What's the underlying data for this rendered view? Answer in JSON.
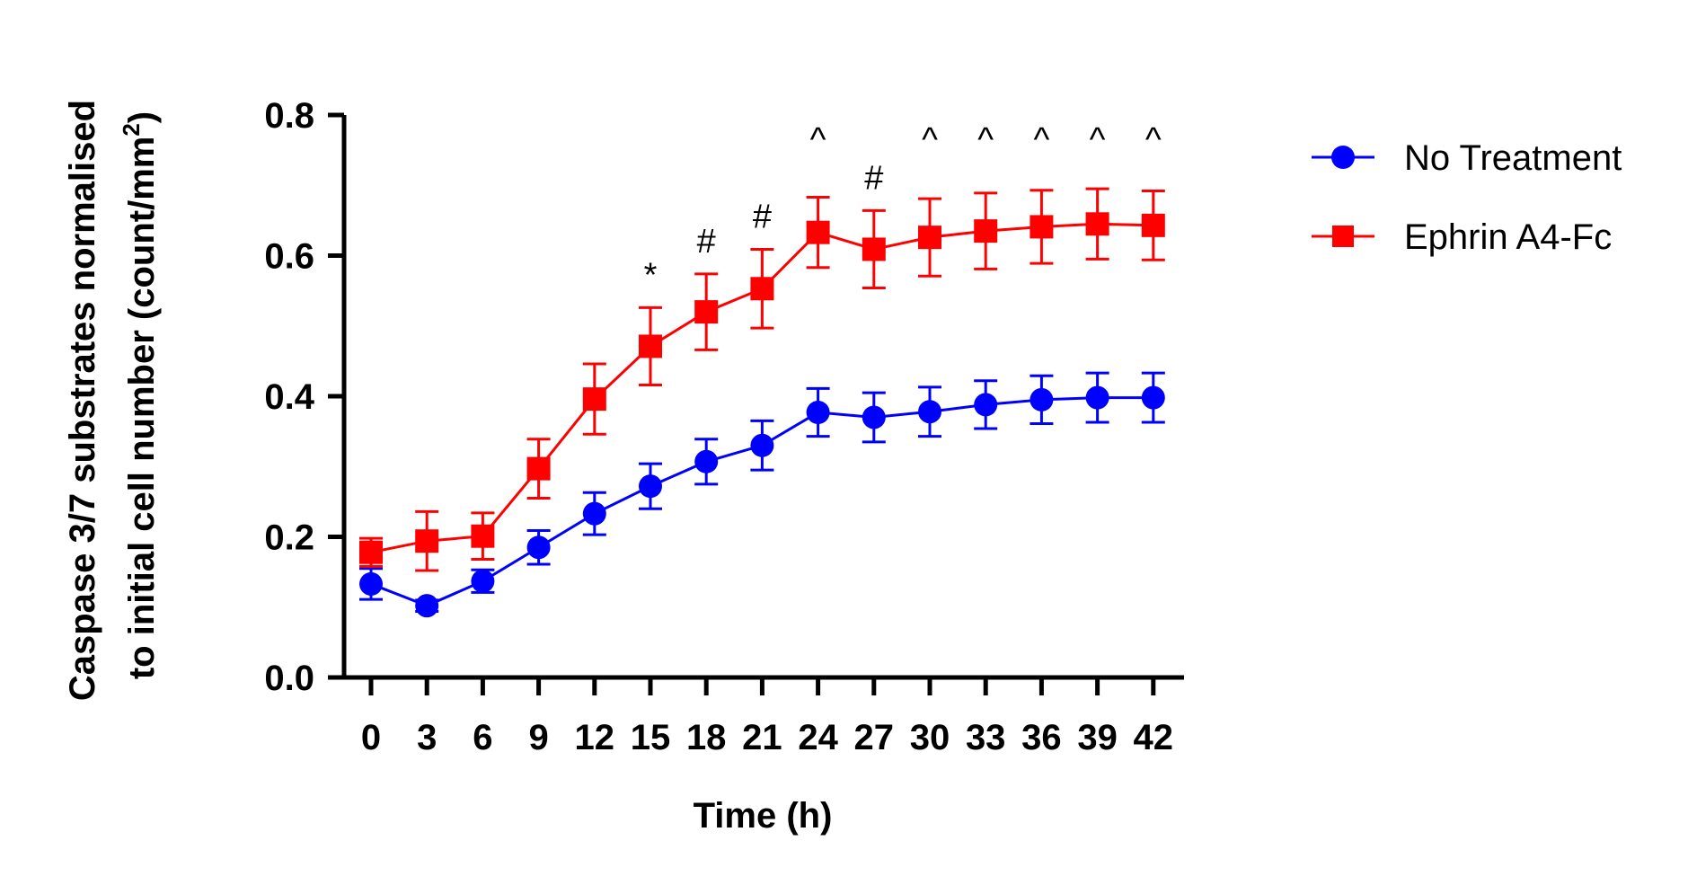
{
  "chart_data": {
    "type": "line",
    "title": "",
    "xlabel": "Time (h)",
    "ylabel_line1": "Caspase 3/7 substrates normalised",
    "ylabel_line2": "to initial cell number (count/mm",
    "ylabel_superscript": "2",
    "ylabel_close": ")",
    "x": [
      0,
      3,
      6,
      9,
      12,
      15,
      18,
      21,
      24,
      27,
      30,
      33,
      36,
      39,
      42
    ],
    "x_tick_labels": [
      "0",
      "3",
      "6",
      "9",
      "12",
      "15",
      "18",
      "21",
      "24",
      "27",
      "30",
      "33",
      "36",
      "39",
      "42"
    ],
    "ylim": [
      0,
      0.8
    ],
    "y_ticks": [
      0.0,
      0.2,
      0.4,
      0.6,
      0.8
    ],
    "y_tick_labels": [
      "0.0",
      "0.2",
      "0.4",
      "0.6",
      "0.8"
    ],
    "grid": false,
    "legend_position": "top-right outside plot",
    "series": [
      {
        "name": "No Treatment",
        "color": "#0000ff",
        "marker": "circle",
        "values": [
          0.133,
          0.102,
          0.137,
          0.185,
          0.233,
          0.272,
          0.307,
          0.33,
          0.377,
          0.37,
          0.378,
          0.388,
          0.395,
          0.398,
          0.398
        ],
        "errors": [
          0.022,
          0.008,
          0.016,
          0.024,
          0.03,
          0.032,
          0.032,
          0.035,
          0.034,
          0.035,
          0.035,
          0.034,
          0.034,
          0.035,
          0.035
        ]
      },
      {
        "name": "Ephrin A4-Fc",
        "color": "#ff0000",
        "marker": "square",
        "values": [
          0.178,
          0.194,
          0.201,
          0.297,
          0.396,
          0.471,
          0.52,
          0.553,
          0.633,
          0.609,
          0.626,
          0.635,
          0.641,
          0.645,
          0.643
        ],
        "errors": [
          0.02,
          0.042,
          0.033,
          0.042,
          0.05,
          0.055,
          0.054,
          0.056,
          0.05,
          0.055,
          0.055,
          0.054,
          0.052,
          0.05,
          0.049
        ]
      }
    ],
    "annotations": [
      {
        "x": 15,
        "text": "*"
      },
      {
        "x": 18,
        "text": "#"
      },
      {
        "x": 21,
        "text": "#"
      },
      {
        "x": 24,
        "text": "^"
      },
      {
        "x": 27,
        "text": "#"
      },
      {
        "x": 30,
        "text": "^"
      },
      {
        "x": 33,
        "text": "^"
      },
      {
        "x": 36,
        "text": "^"
      },
      {
        "x": 39,
        "text": "^"
      },
      {
        "x": 42,
        "text": "^"
      }
    ]
  }
}
